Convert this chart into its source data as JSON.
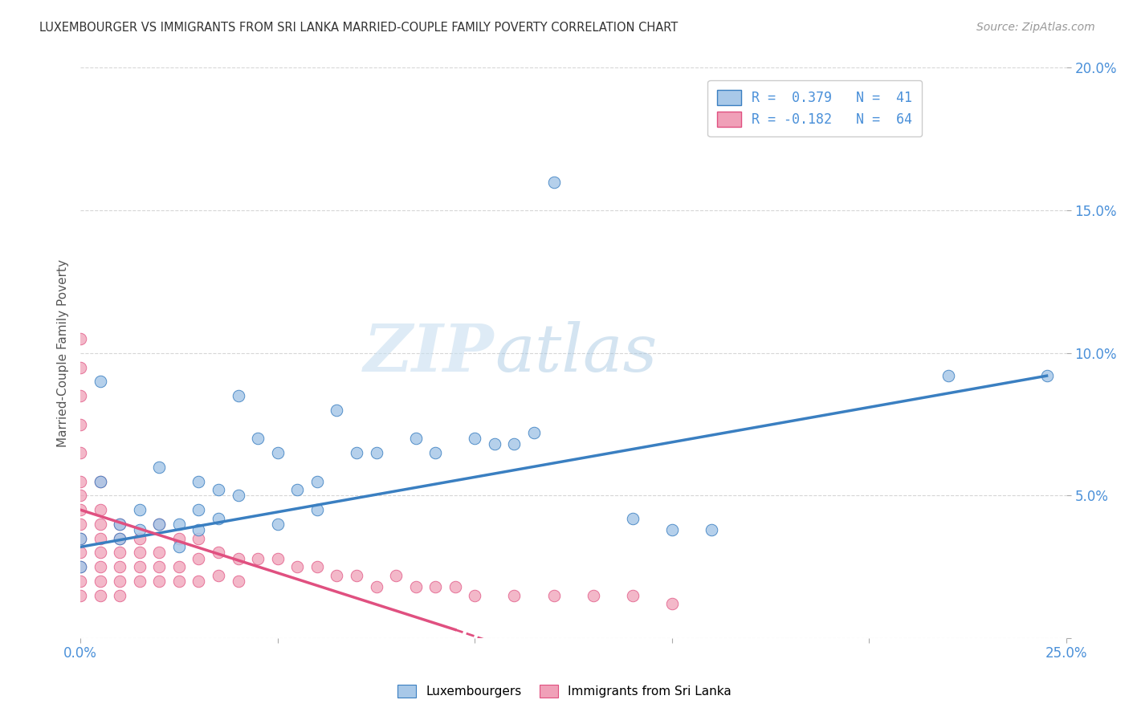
{
  "title": "LUXEMBOURGER VS IMMIGRANTS FROM SRI LANKA MARRIED-COUPLE FAMILY POVERTY CORRELATION CHART",
  "source": "Source: ZipAtlas.com",
  "xlabel": "",
  "ylabel": "Married-Couple Family Poverty",
  "xlim": [
    0.0,
    0.25
  ],
  "ylim": [
    0.0,
    0.2
  ],
  "xticks": [
    0.0,
    0.05,
    0.1,
    0.15,
    0.2,
    0.25
  ],
  "yticks": [
    0.0,
    0.05,
    0.1,
    0.15,
    0.2
  ],
  "blue_color": "#a8c8e8",
  "pink_color": "#f0a0b8",
  "blue_line_color": "#3a7fc1",
  "pink_line_color": "#e05080",
  "watermark_zip": "ZIP",
  "watermark_atlas": "atlas",
  "blue_scatter": [
    [
      0.0,
      0.035
    ],
    [
      0.0,
      0.025
    ],
    [
      0.005,
      0.09
    ],
    [
      0.005,
      0.055
    ],
    [
      0.01,
      0.04
    ],
    [
      0.01,
      0.035
    ],
    [
      0.015,
      0.045
    ],
    [
      0.015,
      0.038
    ],
    [
      0.02,
      0.06
    ],
    [
      0.02,
      0.04
    ],
    [
      0.025,
      0.04
    ],
    [
      0.025,
      0.032
    ],
    [
      0.03,
      0.055
    ],
    [
      0.03,
      0.045
    ],
    [
      0.03,
      0.038
    ],
    [
      0.035,
      0.052
    ],
    [
      0.035,
      0.042
    ],
    [
      0.04,
      0.085
    ],
    [
      0.04,
      0.05
    ],
    [
      0.045,
      0.07
    ],
    [
      0.05,
      0.065
    ],
    [
      0.05,
      0.04
    ],
    [
      0.055,
      0.052
    ],
    [
      0.06,
      0.055
    ],
    [
      0.06,
      0.045
    ],
    [
      0.065,
      0.08
    ],
    [
      0.07,
      0.065
    ],
    [
      0.075,
      0.065
    ],
    [
      0.085,
      0.07
    ],
    [
      0.09,
      0.065
    ],
    [
      0.1,
      0.07
    ],
    [
      0.105,
      0.068
    ],
    [
      0.11,
      0.068
    ],
    [
      0.115,
      0.072
    ],
    [
      0.12,
      0.16
    ],
    [
      0.14,
      0.042
    ],
    [
      0.15,
      0.038
    ],
    [
      0.16,
      0.038
    ],
    [
      0.22,
      0.092
    ],
    [
      0.245,
      0.092
    ]
  ],
  "pink_scatter": [
    [
      0.0,
      0.105
    ],
    [
      0.0,
      0.095
    ],
    [
      0.0,
      0.085
    ],
    [
      0.0,
      0.075
    ],
    [
      0.0,
      0.065
    ],
    [
      0.0,
      0.055
    ],
    [
      0.0,
      0.05
    ],
    [
      0.0,
      0.045
    ],
    [
      0.0,
      0.04
    ],
    [
      0.0,
      0.035
    ],
    [
      0.0,
      0.03
    ],
    [
      0.0,
      0.025
    ],
    [
      0.0,
      0.02
    ],
    [
      0.0,
      0.015
    ],
    [
      0.005,
      0.055
    ],
    [
      0.005,
      0.045
    ],
    [
      0.005,
      0.04
    ],
    [
      0.005,
      0.035
    ],
    [
      0.005,
      0.03
    ],
    [
      0.005,
      0.025
    ],
    [
      0.005,
      0.02
    ],
    [
      0.005,
      0.015
    ],
    [
      0.01,
      0.04
    ],
    [
      0.01,
      0.035
    ],
    [
      0.01,
      0.03
    ],
    [
      0.01,
      0.025
    ],
    [
      0.01,
      0.02
    ],
    [
      0.01,
      0.015
    ],
    [
      0.015,
      0.035
    ],
    [
      0.015,
      0.03
    ],
    [
      0.015,
      0.025
    ],
    [
      0.015,
      0.02
    ],
    [
      0.02,
      0.04
    ],
    [
      0.02,
      0.03
    ],
    [
      0.02,
      0.025
    ],
    [
      0.02,
      0.02
    ],
    [
      0.025,
      0.035
    ],
    [
      0.025,
      0.025
    ],
    [
      0.025,
      0.02
    ],
    [
      0.03,
      0.035
    ],
    [
      0.03,
      0.028
    ],
    [
      0.03,
      0.02
    ],
    [
      0.035,
      0.03
    ],
    [
      0.035,
      0.022
    ],
    [
      0.04,
      0.028
    ],
    [
      0.04,
      0.02
    ],
    [
      0.045,
      0.028
    ],
    [
      0.05,
      0.028
    ],
    [
      0.055,
      0.025
    ],
    [
      0.06,
      0.025
    ],
    [
      0.065,
      0.022
    ],
    [
      0.07,
      0.022
    ],
    [
      0.075,
      0.018
    ],
    [
      0.08,
      0.022
    ],
    [
      0.085,
      0.018
    ],
    [
      0.09,
      0.018
    ],
    [
      0.095,
      0.018
    ],
    [
      0.1,
      0.015
    ],
    [
      0.11,
      0.015
    ],
    [
      0.12,
      0.015
    ],
    [
      0.13,
      0.015
    ],
    [
      0.14,
      0.015
    ],
    [
      0.15,
      0.012
    ]
  ],
  "blue_trendline_solid": [
    [
      0.0,
      0.032
    ],
    [
      0.245,
      0.092
    ]
  ],
  "pink_trendline_solid": [
    [
      0.0,
      0.045
    ],
    [
      0.095,
      0.003
    ]
  ],
  "pink_trendline_dashed": [
    [
      0.095,
      0.003
    ],
    [
      0.155,
      -0.025
    ]
  ]
}
